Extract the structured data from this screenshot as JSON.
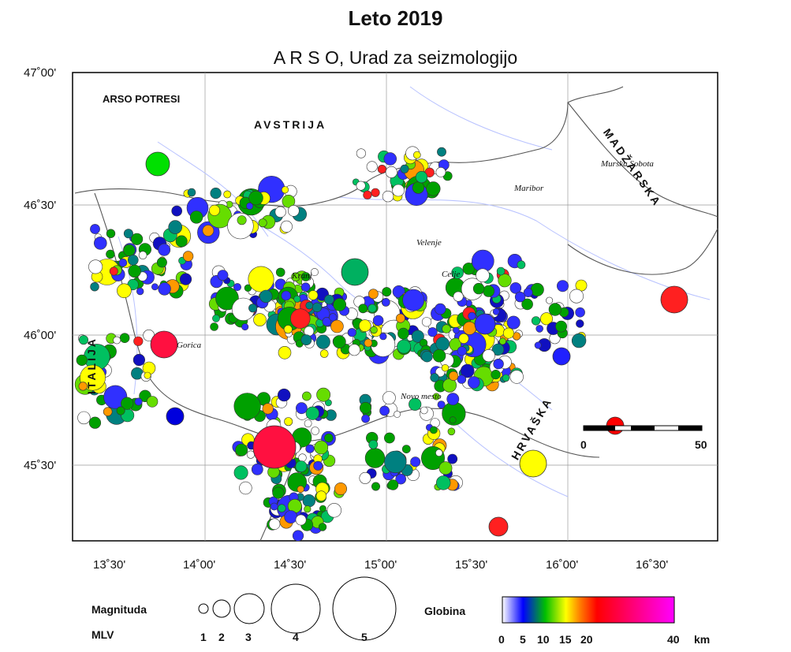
{
  "header": {
    "title": "Leto 2019",
    "subtitle": "A R S O,  Urad za seizmologijo"
  },
  "map": {
    "logo": "ARSO POTRESI",
    "latitude_labels": [
      "47˚00'",
      "46˚30'",
      "46˚00'",
      "45˚30'"
    ],
    "longitude_labels": [
      "13˚30'",
      "14˚00'",
      "14˚30'",
      "15˚00'",
      "15˚30'",
      "16˚00'",
      "16˚30'"
    ],
    "countries": {
      "austria": "AVSTRIJA",
      "hungary": "MADŽARSKA",
      "italy": "ITALIJA",
      "croatia": "HRVAŠKA"
    },
    "cities": [
      "Maribor",
      "Murska Sobota",
      "Velenje",
      "Celje",
      "Kranj",
      "Gorica",
      "Novo mesto"
    ],
    "scale_bar": {
      "start": "0",
      "end": "50"
    },
    "colors": {
      "frame": "#000000",
      "rivers": "#b8c2ff",
      "borders": "#555555"
    }
  },
  "legend": {
    "magnitude": {
      "title_line1": "Magnituda",
      "title_line2": "MLV",
      "sizes": [
        "1",
        "2",
        "3",
        "4",
        "5"
      ]
    },
    "depth": {
      "title": "Globina",
      "ticks": [
        "0",
        "5",
        "10",
        "15",
        "20",
        "40"
      ],
      "unit": "km",
      "colors": [
        "#ffffff",
        "#0000ff",
        "#00c000",
        "#ffff00",
        "#ff8000",
        "#ff0000",
        "#ff00ff"
      ]
    }
  }
}
